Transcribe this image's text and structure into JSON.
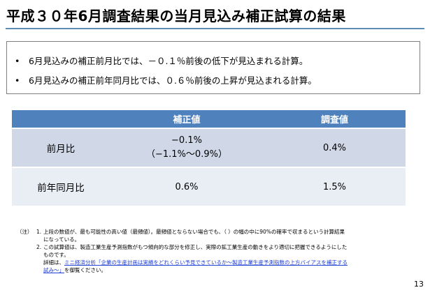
{
  "title": "平成３０年6月調査結果の当月見込み補正試算の結果",
  "summary": {
    "bullets": [
      "6月見込みの補正前月比では、－０.１％前後の低下が見込まれる計算。",
      "6月見込みの補正前年同月比では、０.６％前後の上昇が見込まれる計算。"
    ]
  },
  "table": {
    "headers": [
      "",
      "補正値",
      "調査値"
    ],
    "rows": [
      {
        "label": "前月比",
        "hosei_line1": "−0.1%",
        "hosei_line2": "（−1.1%〜0.9%）",
        "chousa": "0.4%"
      },
      {
        "label": "前年同月比",
        "hosei_line1": "0.6%",
        "hosei_line2": "",
        "chousa": "1.5%"
      }
    ]
  },
  "notes": {
    "mark": "（注）",
    "n1": "1.",
    "n1_text": "上段の数値が、最も可能性の高い値（最頻値）。最頻値とならない場合でも、（ ）の幅の中に90%の確率で収まるという計算結果",
    "n1_cont": "になっている。",
    "n2": "2.",
    "n2_text": "この試算値は、製造工業生産予測指数がもつ傾向的な部分を修正し、実際の鉱工業生産の動きをより適切に把握できるようにした",
    "n2_cont1": "ものです。",
    "n2_cont2_prefix": "詳細は、",
    "n2_link_1": "ミニ経済分析「企業の生産計画は実績をどれくらい予見できているか～製造工業生産予測指数の上方バイアスを補正する",
    "n2_link_2": "試み～」",
    "n2_suffix": "を御覧ください。"
  },
  "page_number": "13"
}
